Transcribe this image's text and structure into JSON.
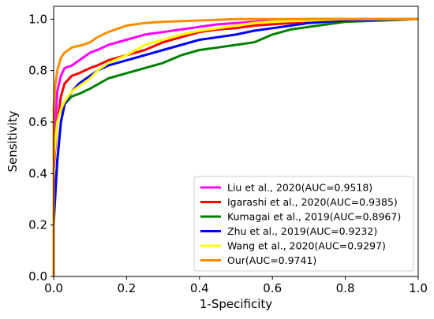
{
  "chart_data": {
    "type": "line",
    "title": "",
    "xlabel": "1-Specificity",
    "ylabel": "Sensitivity",
    "xlim": [
      0.0,
      1.0
    ],
    "ylim": [
      0.0,
      1.05
    ],
    "xticks": [
      "0.0",
      "0.2",
      "0.4",
      "0.6",
      "0.8",
      "1.0"
    ],
    "yticks": [
      "0.0",
      "0.2",
      "0.4",
      "0.6",
      "0.8",
      "1.0"
    ],
    "grid": false,
    "legend_position": "lower-right",
    "series": [
      {
        "name": "Liu et al., 2020(AUC=0.9518)",
        "color": "#ff00ff",
        "x": [
          0.0,
          0.0,
          0.005,
          0.01,
          0.02,
          0.03,
          0.05,
          0.07,
          0.1,
          0.12,
          0.15,
          0.2,
          0.25,
          0.3,
          0.35,
          0.4,
          0.45,
          0.5,
          0.55,
          0.6,
          0.7,
          0.8,
          1.0
        ],
        "y": [
          0.0,
          0.42,
          0.6,
          0.72,
          0.78,
          0.81,
          0.82,
          0.84,
          0.87,
          0.88,
          0.9,
          0.92,
          0.94,
          0.95,
          0.96,
          0.97,
          0.98,
          0.985,
          0.99,
          0.995,
          1.0,
          1.0,
          1.0
        ]
      },
      {
        "name": "Igarashi et al., 2020(AUC=0.9385)",
        "color": "#ff0000",
        "x": [
          0.0,
          0.0,
          0.01,
          0.02,
          0.03,
          0.05,
          0.07,
          0.1,
          0.12,
          0.15,
          0.2,
          0.25,
          0.3,
          0.35,
          0.4,
          0.45,
          0.5,
          0.55,
          0.6,
          0.7,
          0.8,
          1.0
        ],
        "y": [
          0.0,
          0.42,
          0.6,
          0.7,
          0.75,
          0.78,
          0.79,
          0.81,
          0.82,
          0.84,
          0.86,
          0.88,
          0.91,
          0.93,
          0.95,
          0.96,
          0.965,
          0.975,
          0.98,
          0.99,
          1.0,
          1.0
        ]
      },
      {
        "name": "Kumagai et al., 2019(AUC=0.8967)",
        "color": "#008000",
        "x": [
          0.0,
          0.0,
          0.01,
          0.02,
          0.03,
          0.05,
          0.07,
          0.1,
          0.15,
          0.2,
          0.25,
          0.3,
          0.35,
          0.4,
          0.45,
          0.5,
          0.55,
          0.6,
          0.65,
          0.7,
          0.75,
          0.8,
          0.9,
          1.0
        ],
        "y": [
          0.0,
          0.2,
          0.45,
          0.6,
          0.67,
          0.7,
          0.71,
          0.73,
          0.77,
          0.79,
          0.81,
          0.83,
          0.86,
          0.88,
          0.89,
          0.9,
          0.91,
          0.94,
          0.96,
          0.97,
          0.98,
          0.99,
          0.995,
          1.0
        ]
      },
      {
        "name": "Zhu et al., 2019(AUC=0.9232)",
        "color": "#0000ff",
        "x": [
          0.0,
          0.0,
          0.01,
          0.02,
          0.03,
          0.05,
          0.07,
          0.1,
          0.12,
          0.15,
          0.2,
          0.25,
          0.3,
          0.35,
          0.4,
          0.45,
          0.5,
          0.55,
          0.6,
          0.65,
          0.7,
          0.8,
          1.0
        ],
        "y": [
          0.0,
          0.22,
          0.45,
          0.6,
          0.67,
          0.72,
          0.75,
          0.78,
          0.8,
          0.82,
          0.84,
          0.86,
          0.88,
          0.9,
          0.92,
          0.93,
          0.94,
          0.955,
          0.965,
          0.975,
          0.985,
          0.995,
          1.0
        ]
      },
      {
        "name": "Wang et al., 2020(AUC=0.9297)",
        "color": "#ffff00",
        "x": [
          0.0,
          0.0,
          0.01,
          0.02,
          0.03,
          0.05,
          0.07,
          0.1,
          0.12,
          0.15,
          0.2,
          0.25,
          0.3,
          0.35,
          0.4,
          0.45,
          0.5,
          0.55,
          0.6,
          0.7,
          0.8,
          1.0
        ],
        "y": [
          0.0,
          0.45,
          0.6,
          0.65,
          0.68,
          0.72,
          0.74,
          0.77,
          0.8,
          0.83,
          0.86,
          0.9,
          0.92,
          0.94,
          0.955,
          0.965,
          0.975,
          0.985,
          0.99,
          0.995,
          1.0,
          1.0
        ]
      },
      {
        "name": "Our(AUC=0.9741)",
        "color": "#ff8c00",
        "x": [
          0.0,
          0.0,
          0.005,
          0.01,
          0.02,
          0.03,
          0.05,
          0.08,
          0.1,
          0.12,
          0.15,
          0.2,
          0.25,
          0.3,
          0.4,
          0.5,
          0.6,
          0.7,
          1.0
        ],
        "y": [
          0.0,
          0.65,
          0.75,
          0.8,
          0.85,
          0.87,
          0.89,
          0.9,
          0.91,
          0.93,
          0.95,
          0.975,
          0.985,
          0.99,
          0.995,
          1.0,
          1.0,
          1.0,
          1.0
        ]
      }
    ]
  }
}
